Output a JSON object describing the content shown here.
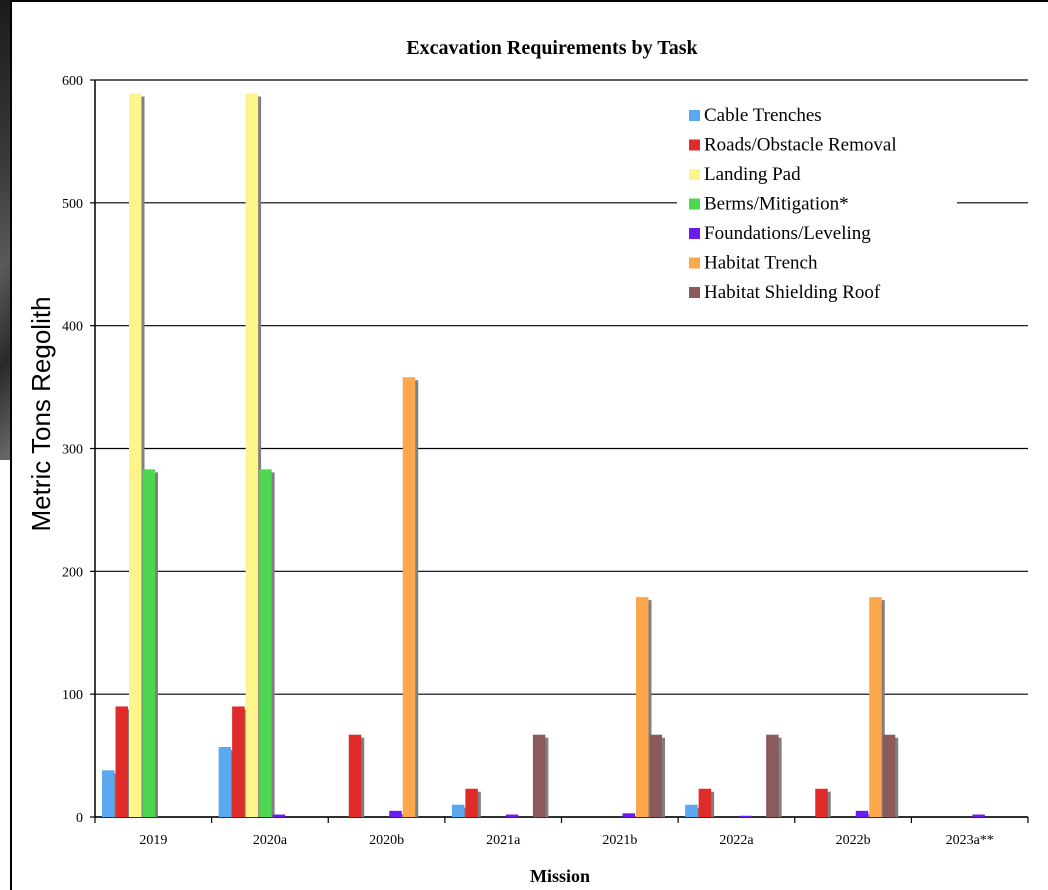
{
  "chart_data": {
    "type": "bar",
    "title": "Excavation Requirements by Task",
    "xlabel": "Mission",
    "ylabel": "Metric Tons Regolith",
    "ylim": [
      0,
      600
    ],
    "yticks": [
      0,
      100,
      200,
      300,
      400,
      500,
      600
    ],
    "grid": true,
    "legend_placement": "top-right",
    "categories": [
      "2019",
      "2020a",
      "2020b",
      "2021a",
      "2021b",
      "2022a",
      "2022b",
      "2023a**"
    ],
    "series": [
      {
        "name": "Cable Trenches",
        "color": "#5aa9f0",
        "values": [
          38,
          57,
          0,
          10,
          0,
          10,
          0,
          0
        ]
      },
      {
        "name": "Roads/Obstacle Removal",
        "color": "#e12a2a",
        "values": [
          90,
          90,
          67,
          23,
          0,
          23,
          23,
          0
        ]
      },
      {
        "name": "Landing Pad",
        "color": "#fdf58a",
        "values": [
          589,
          589,
          0,
          0,
          0,
          0,
          0,
          0
        ]
      },
      {
        "name": "Berms/Mitigation*",
        "color": "#4fd64f",
        "values": [
          283,
          283,
          0,
          0,
          0,
          0,
          0,
          0
        ]
      },
      {
        "name": "Foundations/Leveling",
        "color": "#6a1cf0",
        "values": [
          0,
          2,
          5,
          2,
          3,
          1,
          5,
          2
        ]
      },
      {
        "name": "Habitat Trench",
        "color": "#fda64a",
        "values": [
          0,
          0,
          358,
          0,
          179,
          0,
          179,
          0
        ]
      },
      {
        "name": "Habitat Shielding Roof",
        "color": "#8c5a5a",
        "values": [
          0,
          0,
          0,
          67,
          67,
          67,
          67,
          0
        ]
      }
    ]
  }
}
